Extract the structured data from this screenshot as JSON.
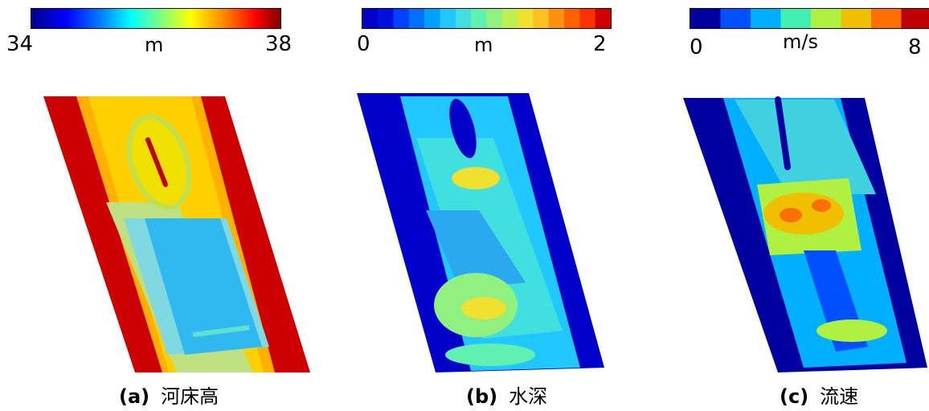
{
  "panels": [
    {
      "colorbar": {
        "min": "34",
        "max": "38",
        "unit": "m"
      },
      "caption": {
        "label": "(a)",
        "text": "河床高"
      }
    },
    {
      "colorbar": {
        "min": "0",
        "max": "2",
        "unit": "m"
      },
      "caption": {
        "label": "(b)",
        "text": "水深"
      }
    },
    {
      "colorbar": {
        "min": "0",
        "max": "8",
        "unit": "m/s"
      },
      "caption": {
        "label": "(c)",
        "text": "流速"
      }
    }
  ],
  "colors": {
    "jet": [
      "#00008f",
      "#0000ff",
      "#0080ff",
      "#00ffff",
      "#80ff80",
      "#ffff00",
      "#ff8000",
      "#ff0000",
      "#800000"
    ],
    "depth_steps": [
      "#0000c8",
      "#0010e0",
      "#0040ff",
      "#0070ff",
      "#00a0ff",
      "#20c8ff",
      "#40e0e0",
      "#60f0b0",
      "#90f080",
      "#c0f050",
      "#f0e030",
      "#ffc020",
      "#ff9010",
      "#ff6000",
      "#ff3000",
      "#d00000"
    ],
    "velocity_steps": [
      "#0000a0",
      "#0050ff",
      "#00b0ff",
      "#40f0b0",
      "#b0f040",
      "#f0c000",
      "#ff7000",
      "#c00000"
    ]
  }
}
